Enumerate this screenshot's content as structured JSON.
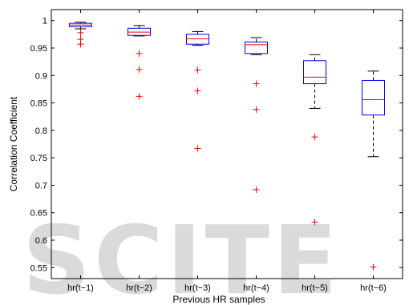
{
  "chart_data": {
    "type": "box",
    "title": "",
    "xlabel": "Previous HR samples",
    "ylabel": "Correlation Coefficient",
    "ylim": [
      0.53,
      1.02
    ],
    "yticks": [
      0.55,
      0.6,
      0.65,
      0.7,
      0.75,
      0.8,
      0.85,
      0.9,
      0.95,
      1
    ],
    "ytick_labels": [
      "0.55",
      "0.6",
      "0.65",
      "0.7",
      "0.75",
      "0.8",
      "0.85",
      "0.9",
      "0.95",
      "1"
    ],
    "grid": false,
    "watermark": "SCITE",
    "colors": {
      "box": "#0000ff",
      "median": "#ff0000",
      "whisker": "#000000",
      "outlier": "#ff0000"
    },
    "boxes": [
      {
        "label": "hr(t−1)",
        "whisker_low": 0.985,
        "q1": 0.989,
        "median": 0.992,
        "q3": 0.995,
        "whisker_high": 0.997,
        "outliers": [
          0.978,
          0.966,
          0.957
        ]
      },
      {
        "label": "hr(t−2)",
        "whisker_low": 0.972,
        "q1": 0.973,
        "median": 0.979,
        "q3": 0.986,
        "whisker_high": 0.991,
        "outliers": [
          0.94,
          0.911,
          0.862
        ]
      },
      {
        "label": "hr(t−3)",
        "whisker_low": 0.955,
        "q1": 0.957,
        "median": 0.967,
        "q3": 0.975,
        "whisker_high": 0.98,
        "outliers": [
          0.91,
          0.872,
          0.767
        ]
      },
      {
        "label": "hr(t−4)",
        "whisker_low": 0.938,
        "q1": 0.94,
        "median": 0.956,
        "q3": 0.961,
        "whisker_high": 0.969,
        "outliers": [
          0.885,
          0.838,
          0.692
        ]
      },
      {
        "label": "hr(t−5)",
        "whisker_low": 0.84,
        "q1": 0.885,
        "median": 0.897,
        "q3": 0.927,
        "whisker_high": 0.938,
        "outliers": [
          0.788,
          0.633
        ]
      },
      {
        "label": "hr(t−6)",
        "whisker_low": 0.752,
        "q1": 0.828,
        "median": 0.856,
        "q3": 0.891,
        "whisker_high": 0.908,
        "outliers": [
          0.551
        ]
      }
    ]
  }
}
